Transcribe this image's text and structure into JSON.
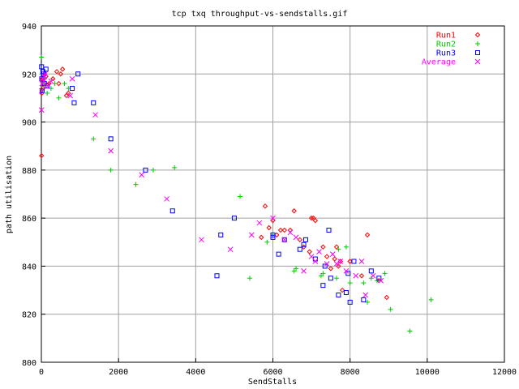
{
  "chart_data": {
    "type": "scatter",
    "title": "tcp txq throughput-vs-sendstalls.gif",
    "xlabel": "SendStalls",
    "ylabel": "path utilisation",
    "xlim": [
      0,
      12000
    ],
    "ylim": [
      800,
      940
    ],
    "x_ticks": [
      "0",
      "2000",
      "4000",
      "6000",
      "8000",
      "10000",
      "12000"
    ],
    "y_ticks": [
      "800",
      "820",
      "840",
      "860",
      "880",
      "900",
      "920",
      "940"
    ],
    "grid": true,
    "legend_position": "top-right",
    "series": [
      {
        "name": "Run1",
        "marker": "diamond",
        "color": "#ff0000",
        "points": [
          [
            5,
            886
          ],
          [
            10,
            912
          ],
          [
            20,
            918
          ],
          [
            40,
            914
          ],
          [
            60,
            916
          ],
          [
            80,
            920
          ],
          [
            120,
            919
          ],
          [
            200,
            916
          ],
          [
            300,
            918
          ],
          [
            400,
            921
          ],
          [
            450,
            916
          ],
          [
            500,
            920
          ],
          [
            550,
            922
          ],
          [
            650,
            911
          ],
          [
            700,
            912
          ],
          [
            5700,
            852
          ],
          [
            5800,
            865
          ],
          [
            5900,
            856
          ],
          [
            6000,
            859
          ],
          [
            6100,
            853
          ],
          [
            6200,
            855
          ],
          [
            6300,
            855
          ],
          [
            6450,
            855
          ],
          [
            6550,
            863
          ],
          [
            6700,
            851
          ],
          [
            6800,
            848
          ],
          [
            6950,
            846
          ],
          [
            7000,
            860
          ],
          [
            7050,
            860
          ],
          [
            7100,
            859
          ],
          [
            7300,
            848
          ],
          [
            7400,
            844
          ],
          [
            7500,
            839
          ],
          [
            7600,
            843
          ],
          [
            7650,
            848
          ],
          [
            7700,
            840
          ],
          [
            7750,
            842
          ],
          [
            7800,
            830
          ],
          [
            8000,
            842
          ],
          [
            8300,
            836
          ],
          [
            8450,
            853
          ],
          [
            8750,
            834
          ],
          [
            8950,
            827
          ]
        ]
      },
      {
        "name": "Run2",
        "marker": "plus",
        "color": "#00cc00",
        "points": [
          [
            5,
            927
          ],
          [
            10,
            920
          ],
          [
            20,
            913
          ],
          [
            40,
            916
          ],
          [
            60,
            917
          ],
          [
            80,
            918
          ],
          [
            150,
            912
          ],
          [
            250,
            914
          ],
          [
            350,
            916
          ],
          [
            450,
            910
          ],
          [
            600,
            916
          ],
          [
            700,
            914
          ],
          [
            1350,
            893
          ],
          [
            1800,
            880
          ],
          [
            2450,
            874
          ],
          [
            2900,
            880
          ],
          [
            3450,
            881
          ],
          [
            5150,
            869
          ],
          [
            5400,
            835
          ],
          [
            5850,
            850
          ],
          [
            6000,
            853
          ],
          [
            6550,
            838
          ],
          [
            6600,
            839
          ],
          [
            7250,
            836
          ],
          [
            7300,
            837
          ],
          [
            7650,
            835
          ],
          [
            7700,
            847
          ],
          [
            7900,
            848
          ],
          [
            8000,
            833
          ],
          [
            8350,
            833
          ],
          [
            8450,
            825
          ],
          [
            8550,
            835
          ],
          [
            8700,
            834
          ],
          [
            8900,
            837
          ],
          [
            9050,
            822
          ],
          [
            9550,
            813
          ],
          [
            10100,
            826
          ]
        ]
      },
      {
        "name": "Run3",
        "marker": "square",
        "color": "#0000ff",
        "points": [
          [
            5,
            923
          ],
          [
            10,
            918
          ],
          [
            20,
            913
          ],
          [
            40,
            921
          ],
          [
            60,
            920
          ],
          [
            80,
            916
          ],
          [
            120,
            922
          ],
          [
            150,
            915
          ],
          [
            800,
            914
          ],
          [
            850,
            908
          ],
          [
            950,
            920
          ],
          [
            1350,
            908
          ],
          [
            1800,
            893
          ],
          [
            2700,
            880
          ],
          [
            3400,
            863
          ],
          [
            4550,
            836
          ],
          [
            4650,
            853
          ],
          [
            5000,
            860
          ],
          [
            6000,
            852
          ],
          [
            6000,
            853
          ],
          [
            6150,
            845
          ],
          [
            6300,
            851
          ],
          [
            6700,
            847
          ],
          [
            6800,
            849
          ],
          [
            6850,
            851
          ],
          [
            7100,
            843
          ],
          [
            7300,
            832
          ],
          [
            7350,
            840
          ],
          [
            7450,
            855
          ],
          [
            7500,
            835
          ],
          [
            7700,
            828
          ],
          [
            7900,
            829
          ],
          [
            7950,
            837
          ],
          [
            8000,
            825
          ],
          [
            8100,
            842
          ],
          [
            8350,
            826
          ],
          [
            8550,
            838
          ],
          [
            8750,
            835
          ]
        ]
      },
      {
        "name": "Average",
        "marker": "cross",
        "color": "#ff00ff",
        "points": [
          [
            5,
            905
          ],
          [
            10,
            913
          ],
          [
            20,
            916
          ],
          [
            40,
            918
          ],
          [
            60,
            917
          ],
          [
            80,
            919
          ],
          [
            100,
            920
          ],
          [
            160,
            915
          ],
          [
            250,
            917
          ],
          [
            750,
            911
          ],
          [
            800,
            918
          ],
          [
            1400,
            903
          ],
          [
            1800,
            888
          ],
          [
            2600,
            878
          ],
          [
            3250,
            868
          ],
          [
            4150,
            851
          ],
          [
            4900,
            847
          ],
          [
            5450,
            853
          ],
          [
            5650,
            858
          ],
          [
            6000,
            860
          ],
          [
            6300,
            851
          ],
          [
            6450,
            854
          ],
          [
            6600,
            852
          ],
          [
            6800,
            838
          ],
          [
            7000,
            844
          ],
          [
            7100,
            842
          ],
          [
            7200,
            846
          ],
          [
            7400,
            841
          ],
          [
            7550,
            845
          ],
          [
            7650,
            841
          ],
          [
            7750,
            842
          ],
          [
            7900,
            838
          ],
          [
            8150,
            836
          ],
          [
            8300,
            842
          ],
          [
            8400,
            828
          ],
          [
            8600,
            836
          ],
          [
            8800,
            834
          ]
        ]
      }
    ]
  }
}
